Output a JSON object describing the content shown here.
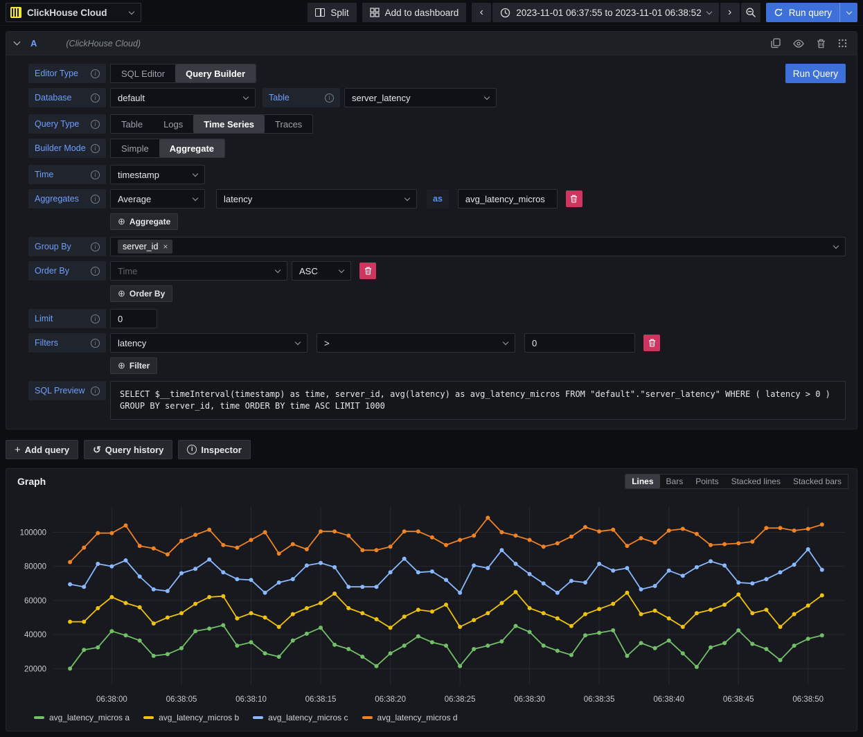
{
  "colors": {
    "accent_blue": "#3D71D9",
    "label_blue": "#6E9FFF",
    "destructive_red": "#D0355F",
    "panel_bg": "#17191E",
    "series_green": "#73BF69",
    "series_yellow": "#EEC211",
    "series_blue": "#8AB8FF",
    "series_orange": "#EF8326"
  },
  "top_bar": {
    "datasource_name": "ClickHouse Cloud",
    "split_label": "Split",
    "add_to_dashboard_label": "Add to dashboard",
    "time_range": "2023-11-01 06:37:55 to 2023-11-01 06:38:52",
    "run_query_label": "Run query"
  },
  "query_editor": {
    "ref_id": "A",
    "datasource_hint": "(ClickHouse Cloud)",
    "run_query_label": "Run Query",
    "rows": {
      "editor_type": {
        "label": "Editor Type",
        "options": [
          "SQL Editor",
          "Query Builder"
        ],
        "selected": "Query Builder"
      },
      "database": {
        "label": "Database",
        "value": "default"
      },
      "table": {
        "label": "Table",
        "value": "server_latency"
      },
      "query_type": {
        "label": "Query Type",
        "options": [
          "Table",
          "Logs",
          "Time Series",
          "Traces"
        ],
        "selected": "Time Series"
      },
      "builder_mode": {
        "label": "Builder Mode",
        "options": [
          "Simple",
          "Aggregate"
        ],
        "selected": "Aggregate"
      },
      "time": {
        "label": "Time",
        "value": "timestamp"
      },
      "aggregates": {
        "label": "Aggregates",
        "function": "Average",
        "column": "latency",
        "as_label": "as",
        "alias": "avg_latency_micros",
        "add_label": "Aggregate"
      },
      "group_by": {
        "label": "Group By",
        "tags": [
          "server_id"
        ]
      },
      "order_by": {
        "label": "Order By",
        "field": "Time",
        "direction": "ASC",
        "add_label": "Order By"
      },
      "limit": {
        "label": "Limit",
        "value": "0"
      },
      "filters": {
        "label": "Filters",
        "field": "latency",
        "operator": ">",
        "value": "0",
        "add_label": "Filter"
      },
      "sql_preview": {
        "label": "SQL Preview",
        "sql": "SELECT $__timeInterval(timestamp) as time, server_id, avg(latency) as avg_latency_micros FROM \"default\".\"server_latency\" WHERE ( latency > 0 ) GROUP BY server_id, time ORDER BY time ASC LIMIT 1000"
      }
    }
  },
  "actions": {
    "add_query": "Add query",
    "query_history": "Query history",
    "inspector": "Inspector"
  },
  "graph_panel": {
    "title": "Graph",
    "style_options": [
      "Lines",
      "Bars",
      "Points",
      "Stacked lines",
      "Stacked bars"
    ],
    "selected_style": "Lines"
  },
  "chart_data": {
    "type": "line",
    "title": "Graph",
    "xlabel": "",
    "ylabel": "",
    "legend_position": "bottom-left",
    "grid": true,
    "grid_color": "#26282d",
    "axis_text_color": "#c9cace",
    "x_start_time": "06:37:57",
    "x_step_seconds": 1,
    "x_offset": -3,
    "x_range_seconds": [
      -4.2,
      52.6
    ],
    "ylim": [
      11200,
      115200
    ],
    "y_ticks": [
      20000,
      40000,
      60000,
      80000,
      100000
    ],
    "x_tick_seconds": [
      0,
      5,
      10,
      15,
      20,
      25,
      30,
      35,
      40,
      45,
      50
    ],
    "x_ticks": [
      "06:38:00",
      "06:38:05",
      "06:38:10",
      "06:38:15",
      "06:38:20",
      "06:38:25",
      "06:38:30",
      "06:38:35",
      "06:38:40",
      "06:38:45",
      "06:38:50"
    ],
    "series": [
      {
        "name": "avg_latency_micros a",
        "color": "#73BF69",
        "values": [
          20000,
          31000,
          32500,
          42000,
          39500,
          36500,
          27500,
          28500,
          32000,
          42000,
          43500,
          45500,
          33500,
          35500,
          29000,
          27000,
          36500,
          40500,
          44000,
          34000,
          31500,
          27000,
          21500,
          29000,
          33500,
          39000,
          35500,
          33500,
          21500,
          31500,
          33500,
          36000,
          45000,
          41500,
          33500,
          30500,
          28000,
          39500,
          41000,
          42500,
          27500,
          35000,
          32000,
          36500,
          29000,
          21000,
          32500,
          35000,
          42500,
          34500,
          31500,
          25000,
          33500,
          37500,
          39500
        ]
      },
      {
        "name": "avg_latency_micros b",
        "color": "#EEC211",
        "values": [
          47500,
          47500,
          55500,
          62000,
          58500,
          56000,
          46500,
          50000,
          52500,
          58000,
          62000,
          62500,
          49500,
          52500,
          50000,
          44500,
          52000,
          55500,
          58500,
          64000,
          55500,
          52500,
          49000,
          44000,
          50500,
          54500,
          53500,
          57500,
          44500,
          48500,
          52500,
          58500,
          65000,
          55500,
          52500,
          49500,
          45000,
          52000,
          55000,
          58000,
          64500,
          52000,
          54000,
          49500,
          44500,
          52500,
          54500,
          57500,
          63500,
          52500,
          54500,
          44500,
          52000,
          57000,
          63000
        ]
      },
      {
        "name": "avg_latency_micros c",
        "color": "#8AB8FF",
        "values": [
          69500,
          68000,
          81500,
          80000,
          83500,
          74000,
          66500,
          65500,
          76000,
          78500,
          84000,
          76500,
          72500,
          72000,
          64500,
          70500,
          72500,
          80500,
          82000,
          79500,
          68000,
          68000,
          68000,
          76500,
          84500,
          76500,
          77000,
          72000,
          64500,
          80500,
          79000,
          89500,
          81500,
          75500,
          70000,
          64500,
          71500,
          70500,
          81500,
          77500,
          79000,
          66500,
          68500,
          77500,
          74500,
          79500,
          83000,
          80500,
          70500,
          70000,
          72500,
          76500,
          81000,
          90000,
          78000
        ]
      },
      {
        "name": "avg_latency_micros d",
        "color": "#EF8326",
        "values": [
          82500,
          91000,
          99500,
          99500,
          104000,
          92000,
          90500,
          87000,
          95000,
          98500,
          101500,
          92500,
          91000,
          95500,
          100000,
          87500,
          93000,
          90000,
          100500,
          100500,
          98000,
          89500,
          89500,
          91500,
          100500,
          100500,
          97000,
          92500,
          95500,
          98000,
          108500,
          100000,
          98000,
          95500,
          91500,
          93500,
          97500,
          103000,
          100500,
          101500,
          92000,
          96500,
          94000,
          101000,
          102000,
          99000,
          92500,
          93000,
          93500,
          94500,
          102500,
          102500,
          101000,
          102000,
          104500
        ]
      }
    ]
  }
}
